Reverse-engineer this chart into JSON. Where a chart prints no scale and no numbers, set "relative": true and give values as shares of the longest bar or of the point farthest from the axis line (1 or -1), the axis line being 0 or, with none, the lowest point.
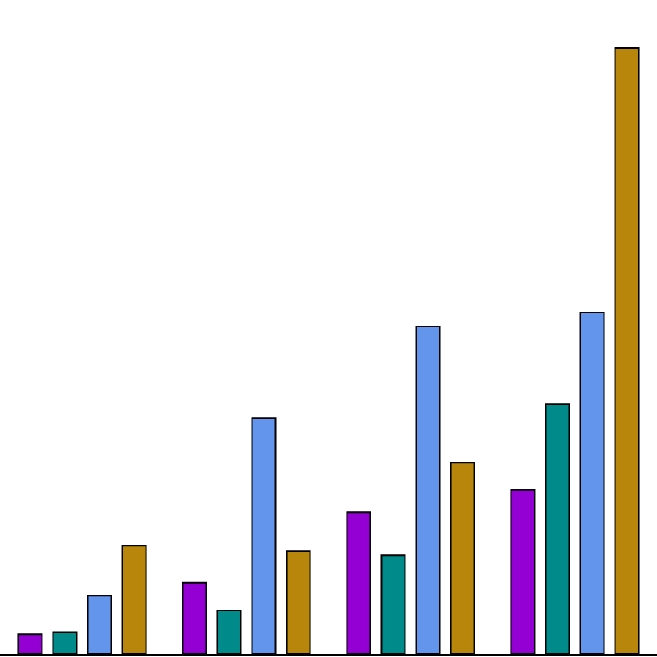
{
  "chart_data": {
    "type": "bar",
    "relative": true,
    "categories": [
      null,
      null,
      null,
      null
    ],
    "series": [
      {
        "color": "#9400d3",
        "values": [
          0.034,
          0.119,
          0.235,
          0.272
        ]
      },
      {
        "color": "#008b8b",
        "values": [
          0.037,
          0.073,
          0.164,
          0.413
        ]
      },
      {
        "color": "#6495ed",
        "values": [
          0.098,
          0.39,
          0.541,
          0.564
        ]
      },
      {
        "color": "#b8860b",
        "values": [
          0.18,
          0.171,
          0.317,
          1
        ]
      }
    ]
  }
}
